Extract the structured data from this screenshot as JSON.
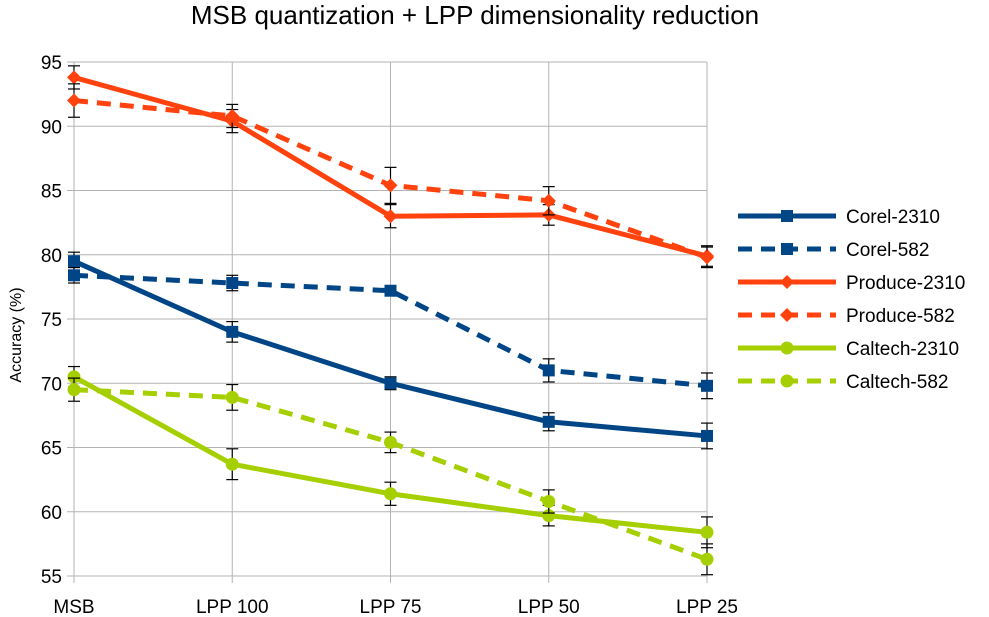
{
  "chart_data": {
    "type": "line",
    "title": "MSB quantization + LPP dimensionality reduction",
    "xlabel": "",
    "ylabel": "Accuracy (%)",
    "categories": [
      "MSB",
      "LPP 100",
      "LPP 75",
      "LPP 50",
      "LPP 25"
    ],
    "ylim": [
      55,
      95
    ],
    "yticks": [
      55,
      60,
      65,
      70,
      75,
      80,
      85,
      90,
      95
    ],
    "grid": true,
    "legend": "right",
    "series": [
      {
        "name": "Corel-2310",
        "color": "#004586",
        "dash": "solid",
        "marker": "square",
        "values": [
          79.5,
          74.0,
          70.0,
          67.0,
          65.9
        ],
        "errors": [
          0.7,
          0.8,
          0.5,
          0.7,
          1.0
        ]
      },
      {
        "name": "Corel-582",
        "color": "#004586",
        "dash": "dashed",
        "marker": "square",
        "values": [
          78.4,
          77.8,
          77.2,
          71.0,
          69.8
        ],
        "errors": [
          0.6,
          0.6,
          0.4,
          0.9,
          1.0
        ]
      },
      {
        "name": "Produce-2310",
        "color": "#ff420e",
        "dash": "solid",
        "marker": "diamond",
        "values": [
          93.8,
          90.4,
          83.0,
          83.1,
          79.9
        ],
        "errors": [
          0.9,
          0.9,
          0.9,
          0.8,
          0.8
        ]
      },
      {
        "name": "Produce-582",
        "color": "#ff420e",
        "dash": "dashed",
        "marker": "diamond",
        "values": [
          92.0,
          90.8,
          85.4,
          84.2,
          79.8
        ],
        "errors": [
          1.3,
          0.9,
          1.4,
          1.1,
          0.8
        ]
      },
      {
        "name": "Caltech-2310",
        "color": "#a6cf00",
        "dash": "solid",
        "marker": "circle",
        "values": [
          70.5,
          63.7,
          61.4,
          59.7,
          58.4
        ],
        "errors": [
          0.8,
          1.2,
          0.9,
          0.8,
          1.2
        ]
      },
      {
        "name": "Caltech-582",
        "color": "#a6cf00",
        "dash": "dashed",
        "marker": "circle",
        "values": [
          69.5,
          68.9,
          65.4,
          60.8,
          56.3
        ],
        "errors": [
          0.9,
          1.0,
          0.8,
          0.9,
          1.2
        ]
      }
    ]
  }
}
